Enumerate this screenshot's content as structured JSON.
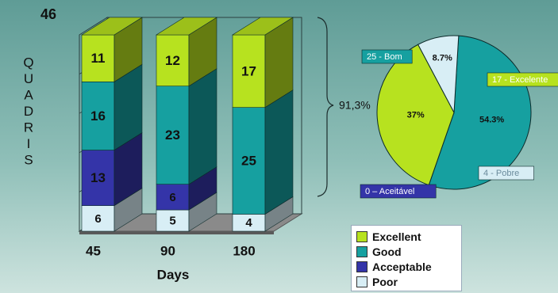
{
  "header": {
    "corner_number": "46",
    "vertical_label": "QUADRIS"
  },
  "colors": {
    "Excellent": "#b7e21f",
    "Good": "#16a0a0",
    "Acceptable": "#3434a8",
    "Poor": "#d8eef5"
  },
  "chart_data": [
    {
      "type": "bar",
      "stacked": true,
      "three_d": true,
      "categories": [
        "45",
        "90",
        "180"
      ],
      "xlabel": "Days",
      "ylabel": "QUADRIS",
      "series": [
        {
          "name": "Poor",
          "values": [
            6,
            5,
            4
          ]
        },
        {
          "name": "Acceptable",
          "values": [
            13,
            6,
            0
          ]
        },
        {
          "name": "Good",
          "values": [
            16,
            23,
            25
          ]
        },
        {
          "name": "Excellent",
          "values": [
            11,
            12,
            17
          ]
        }
      ],
      "axis_top_value": "46",
      "bracket_annotation": "91,3%",
      "legend_position": "bottom-right"
    },
    {
      "type": "pie",
      "slices": [
        {
          "name": "25 - Bom",
          "value": 25,
          "percent_label": "54.3%",
          "series": "Good"
        },
        {
          "name": "17 - Excelente",
          "value": 17,
          "percent_label": "37%",
          "series": "Excellent"
        },
        {
          "name": "4 - Pobre",
          "value": 4,
          "percent_label": "8.7%",
          "series": "Poor"
        },
        {
          "name": "0 – Aceitável",
          "value": 0,
          "percent_label": "",
          "series": "Acceptable"
        }
      ]
    }
  ],
  "legend": {
    "items": [
      {
        "label": "Excellent",
        "series": "Excellent"
      },
      {
        "label": "Good",
        "series": "Good"
      },
      {
        "label": "Acceptable",
        "series": "Acceptable"
      },
      {
        "label": "Poor",
        "series": "Poor"
      }
    ]
  }
}
